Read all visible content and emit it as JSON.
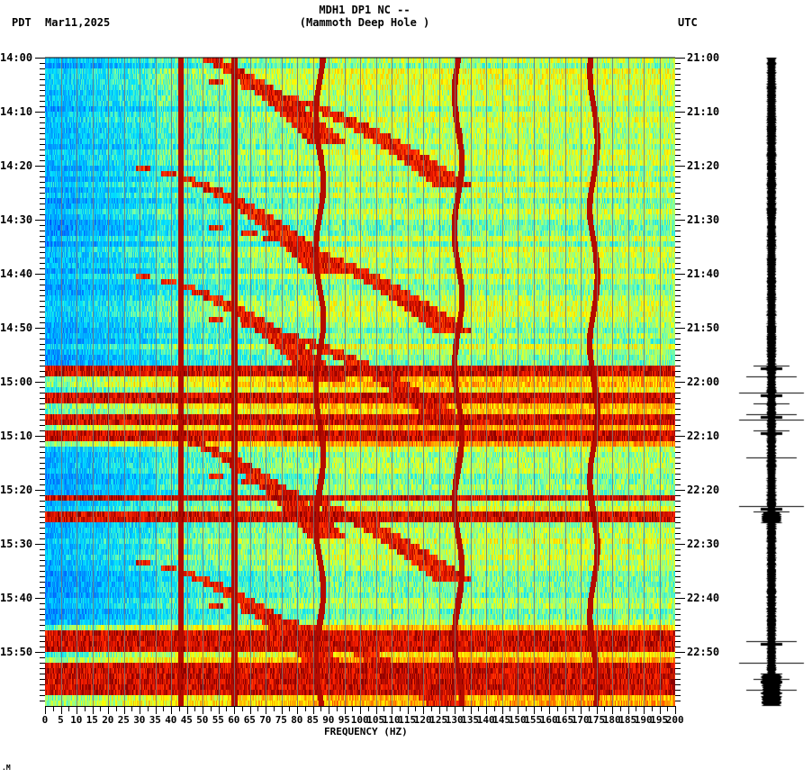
{
  "header": {
    "station_line": "MDH1 DP1 NC --",
    "location_line": "(Mammoth Deep Hole )",
    "left_timezone": "PDT",
    "date": "Mar11,2025",
    "right_timezone": "UTC"
  },
  "footer_mark": ".M",
  "chart_data": {
    "type": "heatmap",
    "title": "MDH1 DP1 NC -- (Mammoth Deep Hole )",
    "subtitle": "Mar11,2025",
    "xlabel": "FREQUENCY (HZ)",
    "ylabel_left": "PDT",
    "ylabel_right": "UTC",
    "xlim": [
      0,
      200
    ],
    "x_ticks": [
      0,
      5,
      10,
      15,
      20,
      25,
      30,
      35,
      40,
      45,
      50,
      55,
      60,
      65,
      70,
      75,
      80,
      85,
      90,
      95,
      100,
      105,
      110,
      115,
      120,
      125,
      130,
      135,
      140,
      145,
      150,
      155,
      160,
      165,
      170,
      175,
      180,
      185,
      190,
      195,
      200
    ],
    "x_tick_labels": [
      "0",
      "5",
      "10",
      "15",
      "20",
      "25",
      "30",
      "35",
      "40",
      "45",
      "50",
      "55",
      "60",
      "65",
      "70",
      "75",
      "80",
      "85",
      "90",
      "95",
      "100",
      "105",
      "110",
      "115",
      "120",
      "125",
      "130",
      "135",
      "140",
      "145",
      "150",
      "155",
      "160",
      "165",
      "170",
      "175",
      "180",
      "185",
      "190",
      "195",
      "200"
    ],
    "y_range_minutes": [
      0,
      120
    ],
    "y_ticks_left": [
      "14:00",
      "14:10",
      "14:20",
      "14:30",
      "14:40",
      "14:50",
      "15:00",
      "15:10",
      "15:20",
      "15:30",
      "15:40",
      "15:50"
    ],
    "y_ticks_right": [
      "21:00",
      "21:10",
      "21:20",
      "21:30",
      "21:40",
      "21:50",
      "22:00",
      "22:10",
      "22:20",
      "22:30",
      "22:40",
      "22:50"
    ],
    "minor_tick_interval_minutes": 1,
    "grid": "vertical gray lines every 5 Hz",
    "colormap": "jet (blue=low, dark red=high)",
    "colormap_stops": [
      "#0050ff",
      "#0096ff",
      "#00e0ff",
      "#7fffa0",
      "#ffff00",
      "#ff9000",
      "#ff2000",
      "#8b0000"
    ],
    "persistent_lines_hz": [
      43,
      60,
      87,
      131,
      174,
      180
    ],
    "broadband_high_rows_minutes": [
      57.5,
      58.5,
      63,
      67,
      70,
      81.5,
      84.5,
      85.5,
      107,
      109,
      113,
      114,
      116,
      117
    ],
    "noisy_period_minutes": [
      57,
      72
    ],
    "quiet_low_freq_region": {
      "freq_hz": [
        0,
        35
      ],
      "level": "low (blue)"
    },
    "arc_sweeps": [
      {
        "start_min": -4,
        "start_hz": 20,
        "end_hz": 90
      },
      {
        "start_min": 4,
        "start_hz": 40,
        "end_hz": 130
      },
      {
        "start_min": 20,
        "start_hz": 20,
        "end_hz": 90
      },
      {
        "start_min": 31,
        "start_hz": 40,
        "end_hz": 130
      },
      {
        "start_min": 40,
        "start_hz": 20,
        "end_hz": 90
      },
      {
        "start_min": 48,
        "start_hz": 40,
        "end_hz": 130
      },
      {
        "start_min": 69,
        "start_hz": 25,
        "end_hz": 90
      },
      {
        "start_min": 77,
        "start_hz": 40,
        "end_hz": 130
      },
      {
        "start_min": 93,
        "start_hz": 20,
        "end_hz": 90
      },
      {
        "start_min": 101,
        "start_hz": 40,
        "end_hz": 130
      }
    ],
    "seismogram": {
      "description": "Vertical trace, black, quiet until ~57 min then spikes",
      "spike_minutes": [
        57,
        59,
        62,
        64,
        66,
        67,
        69,
        74,
        83,
        84,
        108,
        112,
        115,
        117
      ],
      "burst_minutes": [
        [
          84,
          86
        ],
        [
          114,
          120
        ]
      ]
    }
  }
}
